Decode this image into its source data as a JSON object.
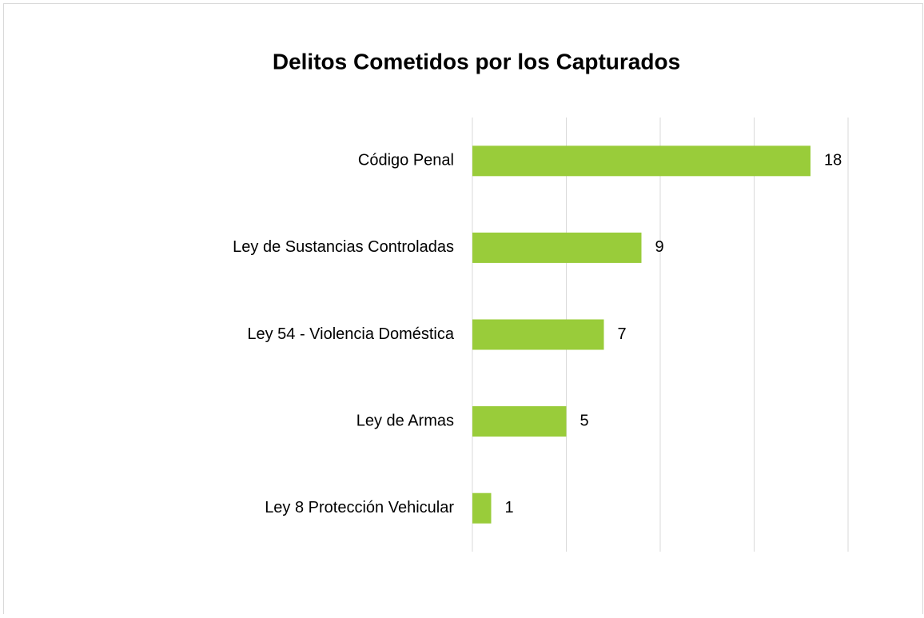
{
  "chart_data": {
    "type": "bar",
    "orientation": "horizontal",
    "title": "Delitos Cometidos por los Capturados",
    "categories": [
      "Código Penal",
      "Ley de Sustancias Controladas",
      "Ley 54 - Violencia Doméstica",
      "Ley de Armas",
      "Ley 8 Protección Vehicular"
    ],
    "values": [
      18,
      9,
      7,
      5,
      1
    ],
    "color": "#99cc3a",
    "xlim": [
      0,
      20
    ],
    "xticks": [
      0,
      5,
      10,
      15,
      20
    ],
    "grid": true
  }
}
